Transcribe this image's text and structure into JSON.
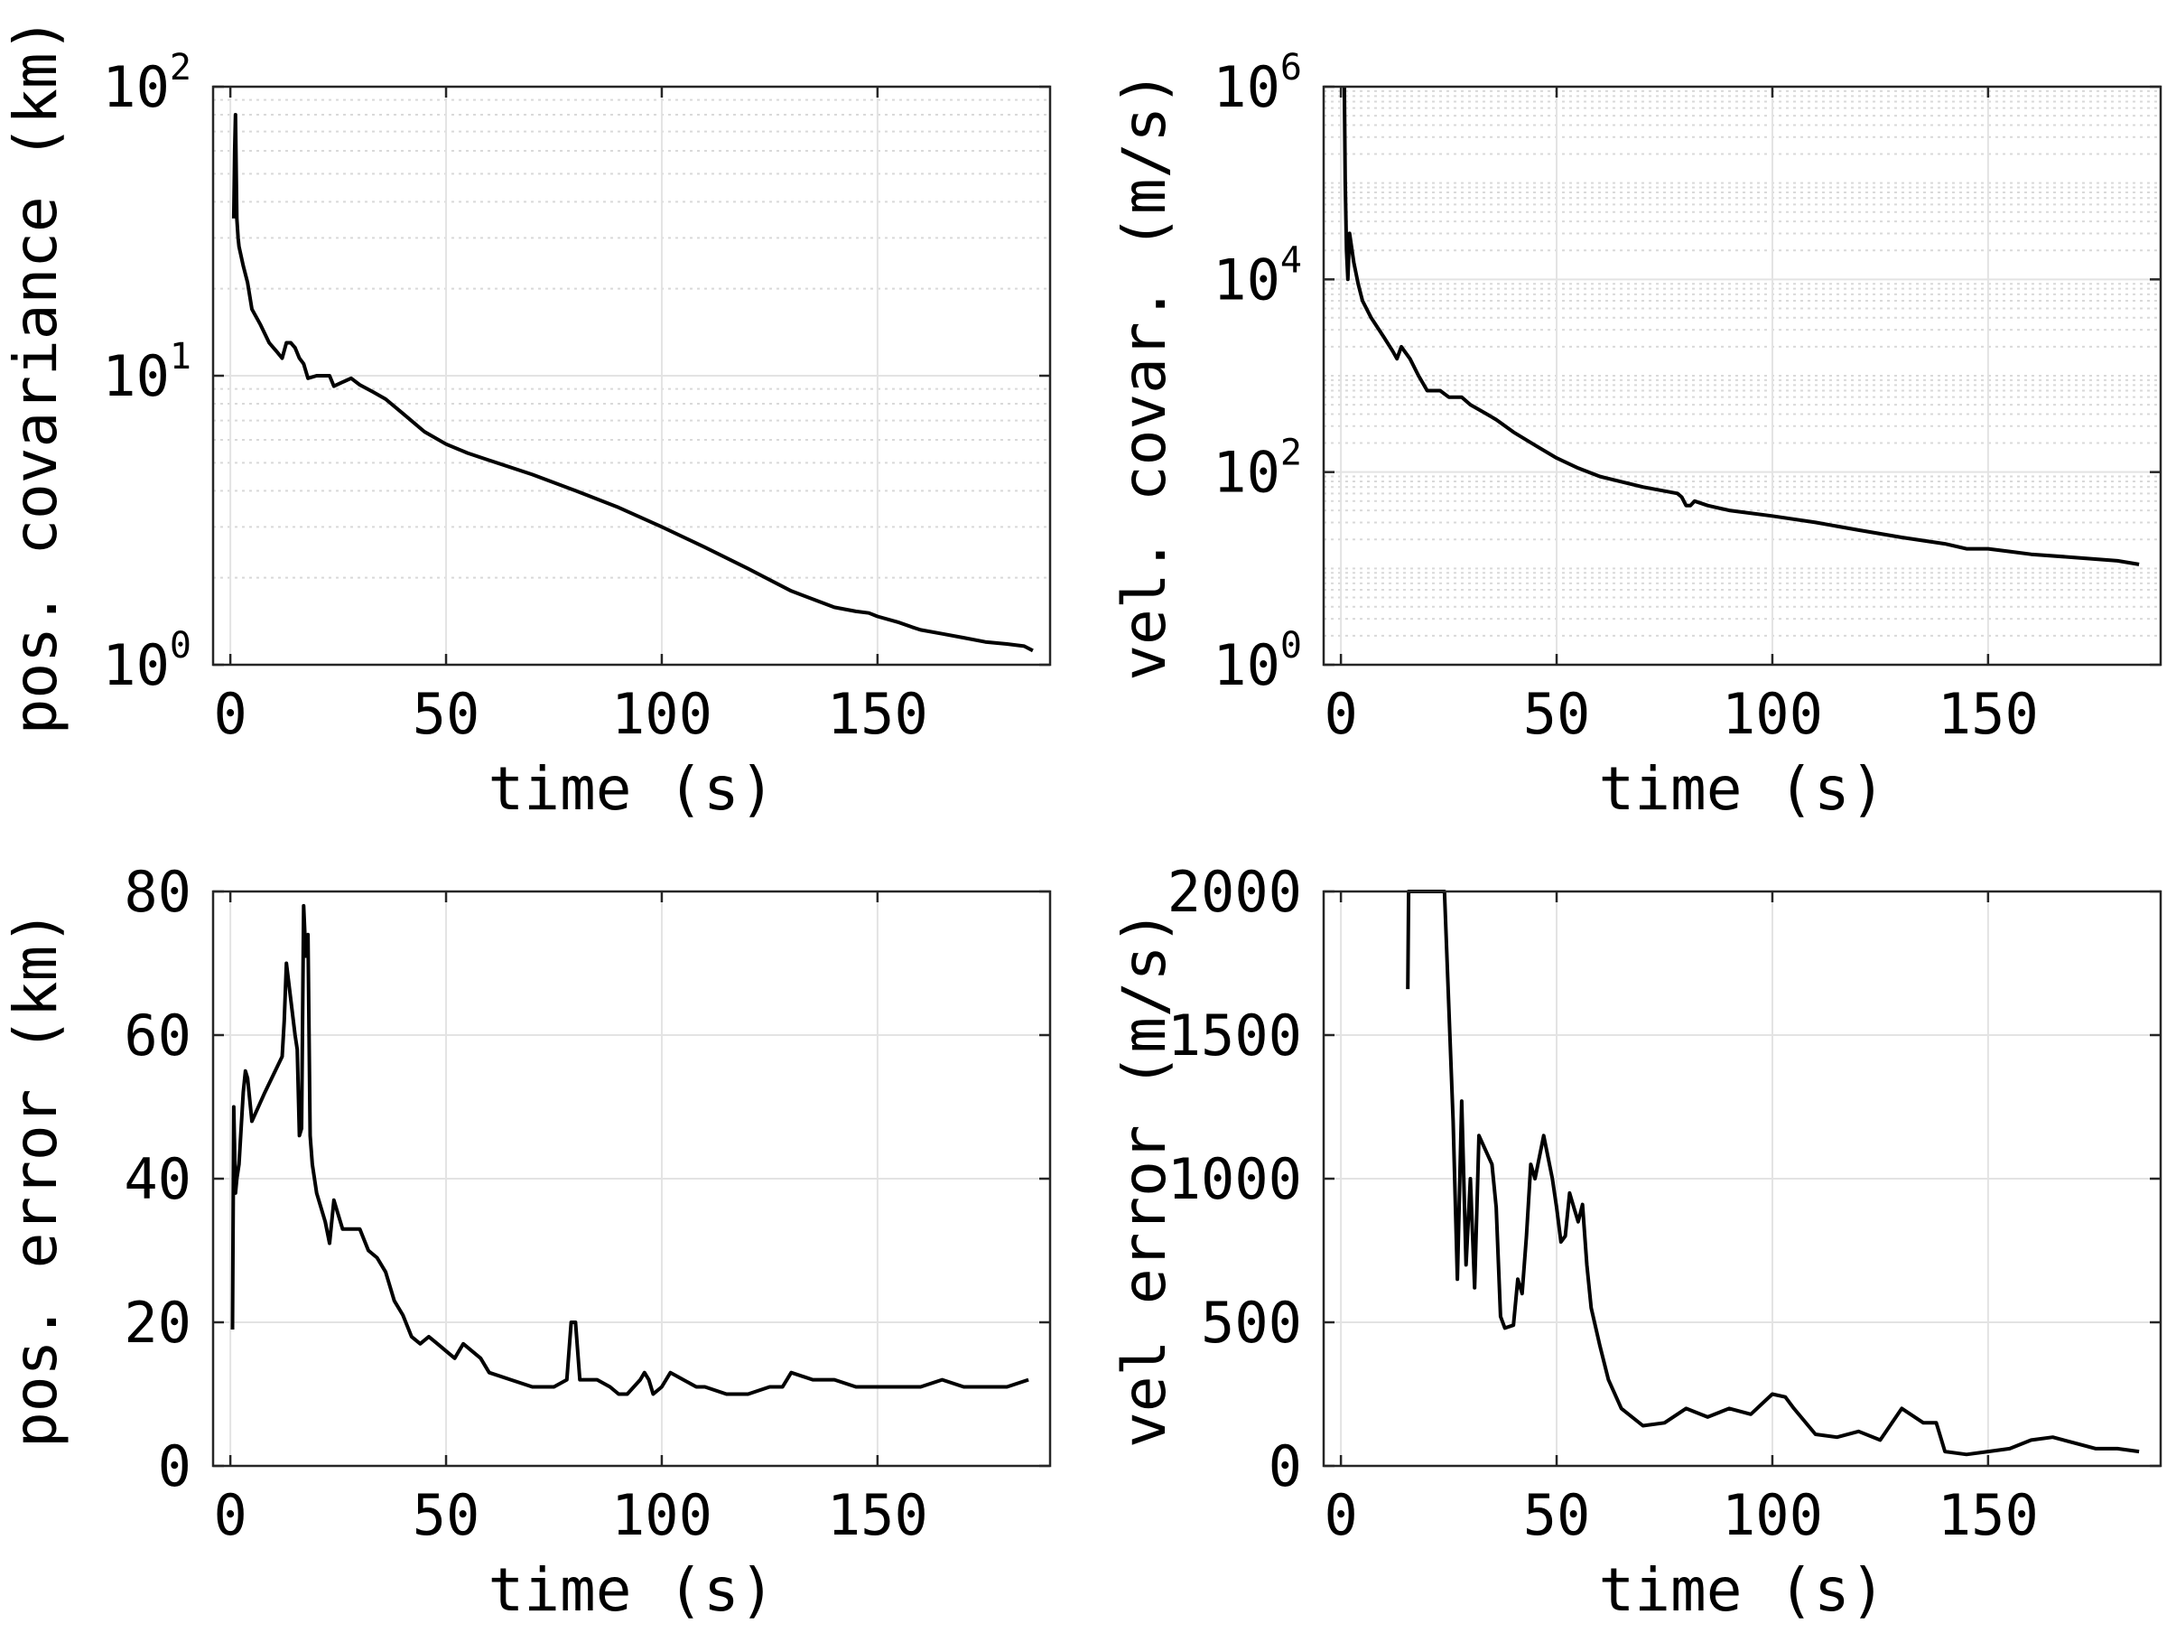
{
  "chart_data": [
    {
      "type": "line",
      "xlabel": "time (s)",
      "ylabel": "pos. covariance (km)",
      "yscale": "log",
      "xlim": [
        -4,
        190
      ],
      "ylim": [
        1,
        100
      ],
      "grid": true,
      "minor_grid": true,
      "xticks": [
        0,
        50,
        100,
        150
      ],
      "xtick_labels": [
        "0",
        "50",
        "100",
        "150"
      ],
      "yticks": [
        1,
        10,
        100
      ],
      "ytick_labels": [
        {
          "base": "10",
          "exp": "0"
        },
        {
          "base": "10",
          "exp": "1"
        },
        {
          "base": "10",
          "exp": "2"
        }
      ],
      "series": [
        {
          "color": "#000000",
          "x": [
            0.8,
            1,
            1.2,
            1.5,
            1.8,
            2,
            3,
            4,
            5,
            7,
            9,
            11,
            12,
            13,
            14,
            15,
            16,
            17,
            18,
            20,
            23,
            24,
            26,
            28,
            30,
            33,
            36,
            40,
            45,
            50,
            55,
            60,
            70,
            80,
            90,
            100,
            110,
            120,
            130,
            140,
            145,
            148,
            150,
            155,
            158,
            160,
            165,
            170,
            175,
            180,
            184,
            186
          ],
          "y": [
            35,
            60,
            80,
            35,
            30,
            28,
            24,
            21,
            17,
            15,
            13,
            12,
            11.5,
            13,
            13,
            12.5,
            11.5,
            11,
            9.8,
            10,
            10,
            9.2,
            9.5,
            9.8,
            9.3,
            8.8,
            8.3,
            7.4,
            6.4,
            5.8,
            5.4,
            5.1,
            4.55,
            4.0,
            3.5,
            3.0,
            2.55,
            2.15,
            1.8,
            1.58,
            1.53,
            1.51,
            1.47,
            1.4,
            1.35,
            1.32,
            1.28,
            1.24,
            1.2,
            1.18,
            1.16,
            1.12
          ]
        }
      ]
    },
    {
      "type": "line",
      "xlabel": "time (s)",
      "ylabel": "vel. covar. (m/s)",
      "yscale": "log",
      "xlim": [
        -4,
        190
      ],
      "ylim": [
        1,
        1000000
      ],
      "grid": true,
      "minor_grid": true,
      "xticks": [
        0,
        50,
        100,
        150
      ],
      "xtick_labels": [
        "0",
        "50",
        "100",
        "150"
      ],
      "yticks": [
        1,
        100,
        10000,
        1000000
      ],
      "ytick_labels": [
        {
          "base": "10",
          "exp": "0"
        },
        {
          "base": "10",
          "exp": "2"
        },
        {
          "base": "10",
          "exp": "4"
        },
        {
          "base": "10",
          "exp": "6"
        }
      ],
      "series": [
        {
          "color": "#000000",
          "x": [
            0.8,
            1,
            1.3,
            1.6,
            2,
            3,
            4,
            5,
            7,
            10,
            12,
            13,
            14,
            16,
            18,
            20,
            23,
            25,
            28,
            30,
            33,
            36,
            40,
            45,
            50,
            55,
            60,
            70,
            78,
            79,
            80,
            81,
            82,
            85,
            90,
            100,
            110,
            120,
            130,
            140,
            145,
            150,
            155,
            160,
            170,
            180,
            185
          ],
          "y": [
            1000000,
            100000,
            20000,
            10000,
            30000,
            15000,
            9000,
            6000,
            4000,
            2500,
            1800,
            1500,
            2000,
            1500,
            1000,
            700,
            700,
            600,
            600,
            500,
            420,
            350,
            260,
            190,
            140,
            110,
            90,
            70,
            60,
            55,
            45,
            45,
            50,
            45,
            40,
            35,
            30,
            25,
            21,
            18,
            16,
            16,
            15,
            14,
            13,
            12,
            11
          ]
        }
      ]
    },
    {
      "type": "line",
      "xlabel": "time (s)",
      "ylabel": "pos. error (km)",
      "yscale": "linear",
      "xlim": [
        -4,
        190
      ],
      "ylim": [
        0,
        80
      ],
      "grid": true,
      "minor_grid": false,
      "xticks": [
        0,
        50,
        100,
        150
      ],
      "xtick_labels": [
        "0",
        "50",
        "100",
        "150"
      ],
      "yticks": [
        0,
        20,
        40,
        60,
        80
      ],
      "ytick_labels": [
        "0",
        "20",
        "40",
        "60",
        "80"
      ],
      "series": [
        {
          "color": "#000000",
          "x": [
            0.5,
            0.8,
            1.2,
            1.5,
            2,
            3,
            3.5,
            4,
            5,
            8,
            12,
            12.5,
            13,
            14,
            15,
            15.5,
            16,
            16.5,
            17,
            17.5,
            18,
            18.5,
            19,
            20,
            22,
            23,
            24,
            25,
            26,
            28,
            30,
            32,
            34,
            36,
            38,
            40,
            42,
            44,
            46,
            48,
            50,
            52,
            54,
            56,
            58,
            60,
            65,
            70,
            75,
            78,
            79,
            80,
            81,
            82,
            85,
            88,
            90,
            92,
            95,
            96,
            97,
            98,
            100,
            102,
            105,
            108,
            110,
            115,
            120,
            125,
            128,
            130,
            135,
            140,
            145,
            150,
            155,
            160,
            165,
            170,
            175,
            180,
            185
          ],
          "y": [
            19,
            50,
            38,
            40,
            42,
            52,
            55,
            54,
            48,
            52,
            57,
            62,
            70,
            65,
            60,
            58,
            46,
            47,
            78,
            71,
            74,
            46,
            42,
            38,
            34,
            31,
            37,
            35,
            33,
            33,
            33,
            30,
            29,
            27,
            23,
            21,
            18,
            17,
            18,
            17,
            16,
            15,
            17,
            16,
            15,
            13,
            12,
            11,
            11,
            12,
            20,
            20,
            12,
            12,
            12,
            11,
            10,
            10,
            12,
            13,
            12,
            10,
            11,
            13,
            12,
            11,
            11,
            10,
            10,
            11,
            11,
            13,
            12,
            12,
            11,
            11,
            11,
            11,
            12,
            11,
            11,
            11,
            12
          ]
        }
      ]
    },
    {
      "type": "line",
      "xlabel": "time (s)",
      "ylabel": "vel error (m/s)",
      "yscale": "linear",
      "xlim": [
        -4,
        190
      ],
      "ylim": [
        0,
        2000
      ],
      "grid": true,
      "minor_grid": false,
      "xticks": [
        0,
        50,
        100,
        150
      ],
      "xtick_labels": [
        "0",
        "50",
        "100",
        "150"
      ],
      "yticks": [
        0,
        500,
        1000,
        1500,
        2000
      ],
      "ytick_labels": [
        "0",
        "500",
        "1000",
        "1500",
        "2000"
      ],
      "series": [
        {
          "color": "#000000",
          "x": [
            15.5,
            15.7,
            16,
            24,
            24.5,
            26,
            27,
            28,
            29,
            30,
            31,
            32,
            35,
            36,
            37,
            38,
            40,
            41,
            42,
            43,
            44,
            45,
            47,
            49,
            50,
            51,
            52,
            53,
            54,
            55,
            56,
            57,
            58,
            60,
            62,
            65,
            70,
            75,
            80,
            85,
            90,
            95,
            100,
            103,
            105,
            110,
            115,
            120,
            125,
            130,
            132,
            135,
            138,
            140,
            145,
            150,
            155,
            160,
            165,
            170,
            175,
            180,
            185
          ],
          "y": [
            1660,
            2000,
            2000,
            2000,
            1800,
            1200,
            650,
            1270,
            700,
            1000,
            620,
            1150,
            1050,
            900,
            520,
            480,
            490,
            650,
            600,
            800,
            1050,
            1000,
            1150,
            1000,
            900,
            780,
            800,
            950,
            900,
            850,
            910,
            700,
            550,
            420,
            300,
            200,
            140,
            150,
            200,
            170,
            200,
            180,
            250,
            240,
            200,
            110,
            100,
            120,
            90,
            200,
            180,
            150,
            150,
            50,
            40,
            50,
            60,
            90,
            100,
            80,
            60,
            60,
            50
          ]
        }
      ]
    }
  ]
}
